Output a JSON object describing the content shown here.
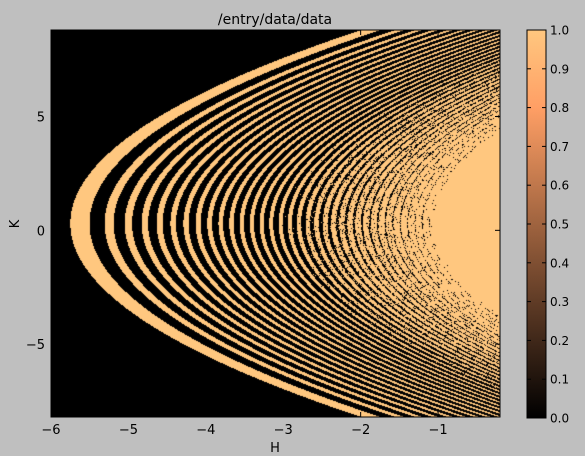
{
  "chart_data": {
    "type": "heatmap",
    "title": "/entry/data/data",
    "xlabel": "H",
    "ylabel": "K",
    "xlim": [
      -6,
      -0.2
    ],
    "ylim": [
      -8.2,
      8.8
    ],
    "x_ticks": [
      -6,
      -5,
      -4,
      -3,
      -2,
      -1
    ],
    "x_tick_labels": [
      "−6",
      "−5",
      "−4",
      "−3",
      "−2",
      "−1"
    ],
    "y_ticks": [
      -5,
      0,
      5
    ],
    "y_tick_labels": [
      "−5",
      "0",
      "5"
    ],
    "colorbar": {
      "colormap": "copper",
      "range": [
        0.0,
        1.0
      ],
      "ticks": [
        0.0,
        0.1,
        0.2,
        0.3,
        0.4,
        0.5,
        0.6,
        0.7,
        0.8,
        0.9,
        1.0
      ],
      "tick_labels": [
        "0.0",
        "0.1",
        "0.2",
        "0.3",
        "0.4",
        "0.5",
        "0.6",
        "0.7",
        "0.8",
        "0.9",
        "1.0"
      ]
    },
    "grid": false,
    "background_value": 0.0,
    "foreground_value": 1.0,
    "colors": {
      "low": "#000000",
      "high": "#ffc77f",
      "figure_bg": "#bfbfbf"
    },
    "pattern": "binary (0/1) parabolic fringes opening toward +H; vertex near H=-5.7, K=0.5; fringes merge into solid 1.0 beyond H≈-1.2; envelope K from about -7.9 to 8.4 at H=-0.2"
  }
}
